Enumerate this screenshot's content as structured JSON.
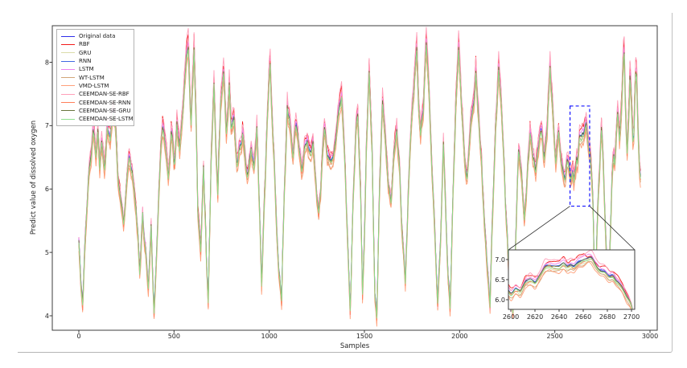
{
  "figure": {
    "title": "",
    "background": "#ffffff",
    "spine_color": "#3c3c3c",
    "zoom_box_color": "#1414ff",
    "connector_color": "#2b2b2b"
  },
  "chart_data": {
    "type": "line",
    "title": "",
    "xlabel": "Samples",
    "ylabel": "Predict value of dissolved oxygen",
    "xlim": [
      -140,
      3040
    ],
    "ylim": [
      3.78,
      8.58
    ],
    "grid": false,
    "legend_position": "upper left",
    "xticks": [
      0,
      500,
      1000,
      1500,
      2000,
      2500,
      3000
    ],
    "yticks": [
      4,
      5,
      6,
      7,
      8
    ],
    "series": [
      {
        "name": "Original data",
        "color": "#2e2eea",
        "offset": 0.0,
        "gain": 1.0,
        "noise": 0.01
      },
      {
        "name": "RBF",
        "color": "#f21b1b",
        "offset": 0.07,
        "gain": 1.05,
        "noise": 0.09
      },
      {
        "name": "GRU",
        "color": "#dbdcaa",
        "offset": -0.07,
        "gain": 0.98,
        "noise": 0.03
      },
      {
        "name": "RNN",
        "color": "#4169e1",
        "offset": 0.01,
        "gain": 1.0,
        "noise": 0.02
      },
      {
        "name": "LSTM",
        "color": "#ee82ee",
        "offset": 0.05,
        "gain": 1.01,
        "noise": 0.03
      },
      {
        "name": "WT-LSTM",
        "color": "#d2a679",
        "offset": -0.12,
        "gain": 0.99,
        "noise": 0.04
      },
      {
        "name": "VMD-LSTM",
        "color": "#ffa07a",
        "offset": -0.15,
        "gain": 1.0,
        "noise": 0.04
      },
      {
        "name": "CEEMDAN-SE-RBF",
        "color": "#ff9fb9",
        "offset": 0.1,
        "gain": 1.08,
        "noise": 0.05
      },
      {
        "name": "CEEMDAN-SE-RNN",
        "color": "#ff7f5a",
        "offset": -0.05,
        "gain": 1.02,
        "noise": 0.04
      },
      {
        "name": "CEEMDAN-SE-GRU",
        "color": "#68753d",
        "offset": -0.01,
        "gain": 1.0,
        "noise": 0.02
      },
      {
        "name": "CEEMDAN-SE-LSTM",
        "color": "#8fe08f",
        "offset": -0.04,
        "gain": 1.0,
        "noise": 0.025
      }
    ],
    "base_series": {
      "name": "Original data (estimated anchor points)",
      "points": [
        [
          0,
          5.3
        ],
        [
          12,
          4.5
        ],
        [
          20,
          4.15
        ],
        [
          30,
          5.0
        ],
        [
          45,
          5.9
        ],
        [
          60,
          6.5
        ],
        [
          75,
          6.85
        ],
        [
          90,
          6.6
        ],
        [
          100,
          6.9
        ],
        [
          110,
          6.4
        ],
        [
          120,
          6.75
        ],
        [
          135,
          6.3
        ],
        [
          150,
          6.95
        ],
        [
          165,
          6.7
        ],
        [
          180,
          7.3
        ],
        [
          195,
          6.9
        ],
        [
          205,
          6.3
        ],
        [
          220,
          5.8
        ],
        [
          235,
          5.45
        ],
        [
          250,
          6.1
        ],
        [
          265,
          6.6
        ],
        [
          280,
          6.35
        ],
        [
          295,
          5.9
        ],
        [
          310,
          5.3
        ],
        [
          320,
          4.7
        ],
        [
          335,
          5.6
        ],
        [
          350,
          5.1
        ],
        [
          365,
          4.5
        ],
        [
          380,
          5.4
        ],
        [
          395,
          4.1
        ],
        [
          410,
          5.2
        ],
        [
          425,
          6.4
        ],
        [
          440,
          7.0
        ],
        [
          455,
          6.6
        ],
        [
          470,
          6.2
        ],
        [
          485,
          6.9
        ],
        [
          500,
          6.4
        ],
        [
          515,
          7.0
        ],
        [
          530,
          6.6
        ],
        [
          545,
          7.2
        ],
        [
          560,
          7.9
        ],
        [
          575,
          8.3
        ],
        [
          590,
          7.0
        ],
        [
          605,
          8.25
        ],
        [
          615,
          7.2
        ],
        [
          625,
          5.6
        ],
        [
          640,
          5.0
        ],
        [
          655,
          6.4
        ],
        [
          670,
          4.9
        ],
        [
          680,
          4.35
        ],
        [
          695,
          6.6
        ],
        [
          710,
          7.75
        ],
        [
          720,
          6.6
        ],
        [
          730,
          6.05
        ],
        [
          745,
          7.3
        ],
        [
          760,
          7.85
        ],
        [
          775,
          6.9
        ],
        [
          790,
          7.6
        ],
        [
          800,
          6.9
        ],
        [
          815,
          7.0
        ],
        [
          830,
          6.3
        ],
        [
          845,
          6.75
        ],
        [
          860,
          6.9
        ],
        [
          875,
          6.5
        ],
        [
          890,
          6.2
        ],
        [
          905,
          6.7
        ],
        [
          920,
          6.4
        ],
        [
          935,
          7.0
        ],
        [
          950,
          5.6
        ],
        [
          960,
          4.5
        ],
        [
          975,
          5.9
        ],
        [
          990,
          7.2
        ],
        [
          1005,
          8.0
        ],
        [
          1020,
          6.8
        ],
        [
          1035,
          5.6
        ],
        [
          1050,
          4.8
        ],
        [
          1065,
          4.3
        ],
        [
          1080,
          6.0
        ],
        [
          1095,
          7.35
        ],
        [
          1110,
          6.9
        ],
        [
          1125,
          6.55
        ],
        [
          1140,
          7.0
        ],
        [
          1155,
          6.7
        ],
        [
          1170,
          6.3
        ],
        [
          1185,
          6.6
        ],
        [
          1200,
          6.85
        ],
        [
          1215,
          6.5
        ],
        [
          1230,
          6.75
        ],
        [
          1245,
          6.1
        ],
        [
          1260,
          5.6
        ],
        [
          1275,
          6.3
        ],
        [
          1290,
          6.9
        ],
        [
          1305,
          6.6
        ],
        [
          1320,
          6.4
        ],
        [
          1335,
          6.55
        ],
        [
          1350,
          6.8
        ],
        [
          1365,
          7.2
        ],
        [
          1380,
          7.5
        ],
        [
          1395,
          6.6
        ],
        [
          1410,
          5.3
        ],
        [
          1425,
          4.1
        ],
        [
          1440,
          5.7
        ],
        [
          1455,
          7.0
        ],
        [
          1465,
          7.3
        ],
        [
          1480,
          6.0
        ],
        [
          1490,
          4.35
        ],
        [
          1500,
          5.2
        ],
        [
          1510,
          6.6
        ],
        [
          1525,
          7.85
        ],
        [
          1540,
          6.6
        ],
        [
          1555,
          4.3
        ],
        [
          1565,
          4.05
        ],
        [
          1580,
          6.0
        ],
        [
          1595,
          7.4
        ],
        [
          1610,
          6.8
        ],
        [
          1625,
          6.0
        ],
        [
          1640,
          5.85
        ],
        [
          1655,
          6.6
        ],
        [
          1670,
          7.0
        ],
        [
          1685,
          6.3
        ],
        [
          1700,
          5.3
        ],
        [
          1715,
          4.5
        ],
        [
          1730,
          5.9
        ],
        [
          1745,
          7.0
        ],
        [
          1760,
          7.6
        ],
        [
          1775,
          8.3
        ],
        [
          1785,
          7.4
        ],
        [
          1795,
          6.9
        ],
        [
          1810,
          7.3
        ],
        [
          1825,
          8.35
        ],
        [
          1840,
          7.5
        ],
        [
          1855,
          6.4
        ],
        [
          1870,
          5.3
        ],
        [
          1885,
          4.15
        ],
        [
          1900,
          5.3
        ],
        [
          1915,
          6.7
        ],
        [
          1925,
          5.9
        ],
        [
          1940,
          4.6
        ],
        [
          1950,
          4.2
        ],
        [
          1965,
          5.9
        ],
        [
          1980,
          7.2
        ],
        [
          1995,
          8.2
        ],
        [
          2010,
          7.4
        ],
        [
          2025,
          6.5
        ],
        [
          2040,
          6.2
        ],
        [
          2055,
          6.9
        ],
        [
          2070,
          7.3
        ],
        [
          2085,
          7.8
        ],
        [
          2100,
          7.2
        ],
        [
          2115,
          6.4
        ],
        [
          2130,
          5.5
        ],
        [
          2145,
          4.8
        ],
        [
          2160,
          4.3
        ],
        [
          2175,
          5.8
        ],
        [
          2190,
          7.0
        ],
        [
          2205,
          7.9
        ],
        [
          2220,
          7.3
        ],
        [
          2235,
          6.3
        ],
        [
          2250,
          5.2
        ],
        [
          2265,
          4.35
        ],
        [
          2280,
          4.05
        ],
        [
          2295,
          5.3
        ],
        [
          2310,
          6.6
        ],
        [
          2325,
          6.3
        ],
        [
          2340,
          5.6
        ],
        [
          2355,
          6.2
        ],
        [
          2370,
          6.8
        ],
        [
          2385,
          6.5
        ],
        [
          2400,
          6.3
        ],
        [
          2415,
          6.7
        ],
        [
          2430,
          6.9
        ],
        [
          2445,
          6.6
        ],
        [
          2460,
          7.0
        ],
        [
          2475,
          7.9
        ],
        [
          2490,
          7.2
        ],
        [
          2505,
          6.4
        ],
        [
          2520,
          6.9
        ],
        [
          2535,
          6.5
        ],
        [
          2550,
          6.2
        ],
        [
          2565,
          6.45
        ],
        [
          2580,
          6.3
        ],
        [
          2590,
          6.2
        ],
        [
          2600,
          6.25
        ],
        [
          2604,
          6.33
        ],
        [
          2608,
          6.2
        ],
        [
          2612,
          6.45
        ],
        [
          2616,
          6.52
        ],
        [
          2620,
          6.45
        ],
        [
          2624,
          6.6
        ],
        [
          2628,
          6.75
        ],
        [
          2632,
          6.88
        ],
        [
          2636,
          6.95
        ],
        [
          2640,
          6.88
        ],
        [
          2644,
          6.93
        ],
        [
          2648,
          6.8
        ],
        [
          2652,
          6.78
        ],
        [
          2656,
          6.88
        ],
        [
          2660,
          6.93
        ],
        [
          2664,
          7.0
        ],
        [
          2668,
          6.97
        ],
        [
          2672,
          6.88
        ],
        [
          2676,
          6.8
        ],
        [
          2680,
          6.72
        ],
        [
          2684,
          6.6
        ],
        [
          2688,
          6.5
        ],
        [
          2692,
          6.35
        ],
        [
          2696,
          6.1
        ],
        [
          2700,
          5.88
        ],
        [
          2706,
          5.0
        ],
        [
          2712,
          4.45
        ],
        [
          2720,
          5.2
        ],
        [
          2728,
          5.9
        ],
        [
          2736,
          6.3
        ],
        [
          2744,
          6.9
        ],
        [
          2752,
          6.6
        ],
        [
          2760,
          5.9
        ],
        [
          2768,
          5.2
        ],
        [
          2776,
          4.6
        ],
        [
          2784,
          4.2
        ],
        [
          2792,
          5.3
        ],
        [
          2800,
          6.2
        ],
        [
          2808,
          6.6
        ],
        [
          2816,
          6.4
        ],
        [
          2824,
          6.9
        ],
        [
          2832,
          7.3
        ],
        [
          2840,
          6.8
        ],
        [
          2848,
          7.1
        ],
        [
          2856,
          7.7
        ],
        [
          2864,
          8.3
        ],
        [
          2872,
          7.3
        ],
        [
          2880,
          6.6
        ],
        [
          2888,
          7.2
        ],
        [
          2896,
          7.9
        ],
        [
          2904,
          7.3
        ],
        [
          2912,
          6.6
        ],
        [
          2920,
          7.4
        ],
        [
          2928,
          8.05
        ],
        [
          2936,
          7.0
        ],
        [
          2944,
          6.4
        ],
        [
          2950,
          6.3
        ]
      ]
    },
    "inset": {
      "xlim": [
        2598,
        2703
      ],
      "ylim": [
        5.76,
        7.24
      ],
      "xticks": [
        2600,
        2620,
        2640,
        2660,
        2680,
        2700
      ],
      "yticks": [
        6.0,
        6.5,
        7.0
      ],
      "ytick_labels": [
        "6.0",
        "6.5",
        "7.0"
      ],
      "zoom_rect": {
        "x0": 2580,
        "x1": 2683,
        "y0": 5.73,
        "y1": 7.31
      }
    }
  }
}
